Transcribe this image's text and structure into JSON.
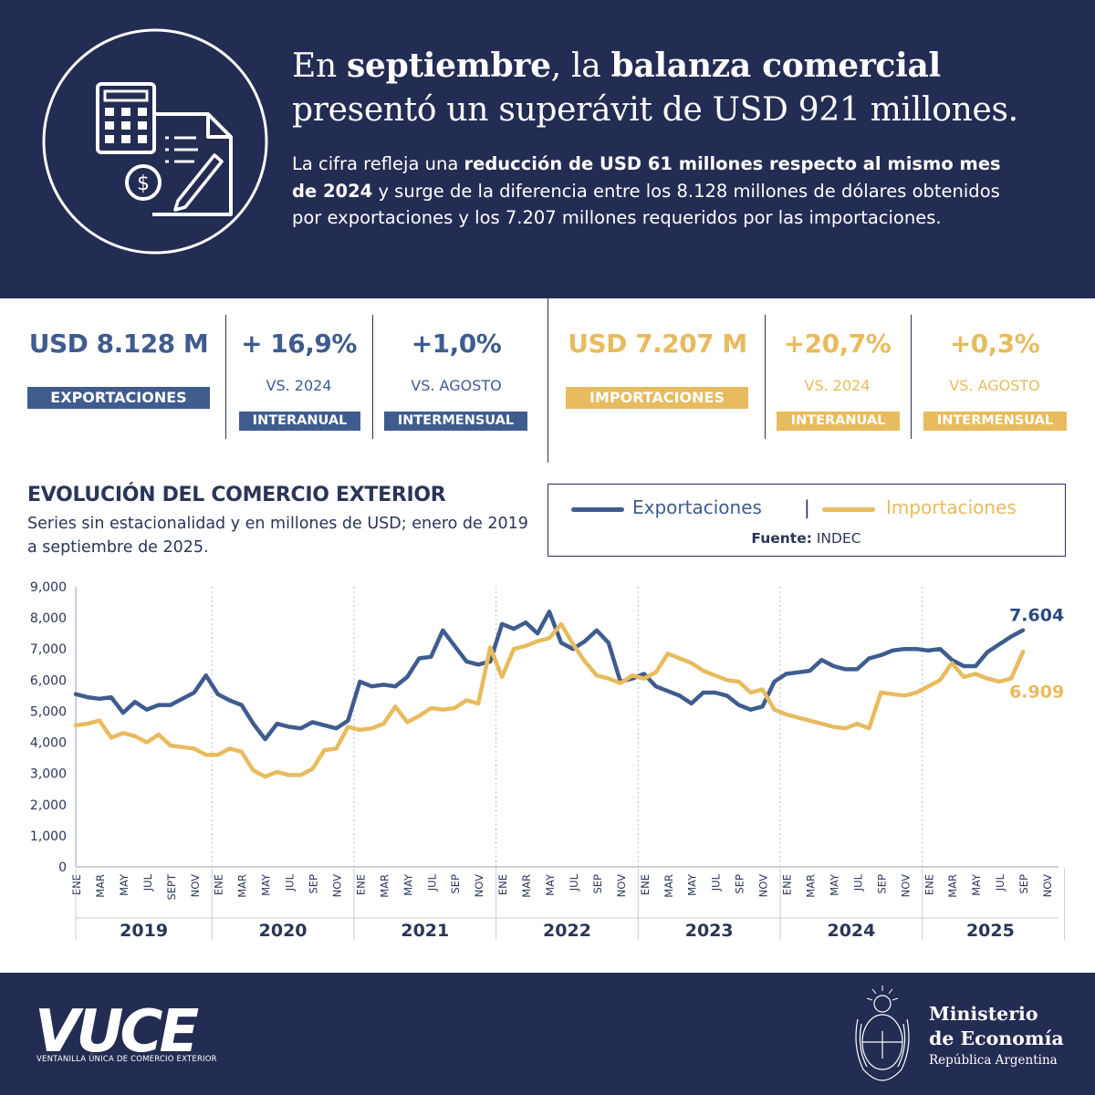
{
  "header": {
    "headline_1": "En ",
    "headline_2": "septiembre",
    "headline_3": ", la ",
    "headline_4": "balanza comercial",
    "headline_5": "presentó un superávit de USD 921 millones.",
    "sub_1": "La cifra refleja una ",
    "sub_2": "reducción de USD 61 millones respecto al mismo mes de 2024",
    "sub_3": " y surge de la diferencia entre los 8.128 millones de dólares obtenidos por exportaciones y los 7.207 millones requeridos por las importaciones."
  },
  "stats": {
    "exports": {
      "value": "USD 8.128 M",
      "label": "EXPORTACIONES",
      "yoy_value": "+ 16,9%",
      "yoy_vs": "VS. 2024",
      "yoy_tag": "INTERANUAL",
      "mom_value": "+1,0%",
      "mom_vs": "VS. AGOSTO",
      "mom_tag": "INTERMENSUAL"
    },
    "imports": {
      "value": "USD 7.207 M",
      "label": "IMPORTACIONES",
      "yoy_value": "+20,7%",
      "yoy_vs": "VS. 2024",
      "yoy_tag": "INTERANUAL",
      "mom_value": "+0,3%",
      "mom_vs": "VS. AGOSTO",
      "mom_tag": "INTERMENSUAL"
    }
  },
  "legend": {
    "exports": "Exportaciones",
    "sep": "|",
    "imports": "Importaciones",
    "source_label": "Fuente:",
    "source": " INDEC"
  },
  "colors": {
    "navy": "#232c52",
    "exports": "#3f5c8f",
    "imports": "#e8bb5e"
  },
  "chart_data": {
    "type": "line",
    "title": "EVOLUCIÓN DEL COMERCIO EXTERIOR",
    "subtitle": "Series sin estacionalidad y en millones de USD; enero de 2019 a septiembre de 2025.",
    "ylim": [
      0,
      9000
    ],
    "y_ticks": [
      "0",
      "1,000",
      "2,000",
      "3,000",
      "4,000",
      "5,000",
      "6,000",
      "7,000",
      "8,000",
      "9,000"
    ],
    "month_ticks": [
      "ENE",
      "MAR",
      "MAY",
      "JUL",
      "SEPT",
      "NOV",
      "ENE",
      "MAR",
      "MAY",
      "JUL",
      "SEP",
      "NOV",
      "ENE",
      "MAR",
      "MAY",
      "JUL",
      "SEP",
      "NOV",
      "ENE",
      "MAR",
      "MAY",
      "JUL",
      "SEP",
      "NOV",
      "ENE",
      "MAR",
      "MAY",
      "JUL",
      "SEP",
      "NOV",
      "ENE",
      "MAR",
      "MAY",
      "JUL",
      "SEP",
      "NOV",
      "ENE",
      "MAR",
      "MAY",
      "JUL",
      "SEP",
      "NOV"
    ],
    "years": [
      "2019",
      "2020",
      "2021",
      "2022",
      "2023",
      "2024",
      "2025"
    ],
    "grid": "dotted vertical year separators",
    "series": [
      {
        "name": "Exportaciones",
        "color": "#3f5c8f",
        "end_label": "7.604",
        "values": [
          5550,
          5450,
          5400,
          5450,
          4950,
          5300,
          5050,
          5200,
          5200,
          5400,
          5600,
          6150,
          5550,
          5350,
          5200,
          4600,
          4100,
          4600,
          4500,
          4450,
          4650,
          4550,
          4450,
          4700,
          5950,
          5800,
          5850,
          5800,
          6100,
          6700,
          6750,
          7600,
          7100,
          6600,
          6500,
          6600,
          7800,
          7650,
          7850,
          7500,
          8200,
          7200,
          7000,
          7250,
          7600,
          7200,
          5950,
          6050,
          6200,
          5800,
          5650,
          5500,
          5250,
          5600,
          5600,
          5500,
          5200,
          5050,
          5150,
          5950,
          6200,
          6250,
          6300,
          6650,
          6450,
          6350,
          6350,
          6700,
          6800,
          6950,
          7000,
          7000,
          6950,
          7000,
          6650,
          6450,
          6450,
          6900,
          7150,
          7400,
          7604
        ]
      },
      {
        "name": "Importaciones",
        "color": "#e8bb5e",
        "end_label": "6.909",
        "values": [
          4550,
          4600,
          4700,
          4150,
          4300,
          4200,
          4000,
          4250,
          3900,
          3850,
          3800,
          3600,
          3600,
          3800,
          3700,
          3100,
          2900,
          3050,
          2950,
          2950,
          3150,
          3750,
          3800,
          4500,
          4400,
          4450,
          4600,
          5150,
          4650,
          4850,
          5100,
          5050,
          5100,
          5350,
          5250,
          7050,
          6100,
          7000,
          7100,
          7250,
          7350,
          7800,
          7150,
          6600,
          6150,
          6050,
          5900,
          6150,
          6050,
          6250,
          6850,
          6700,
          6550,
          6300,
          6150,
          6000,
          5950,
          5600,
          5700,
          5050,
          4900,
          4800,
          4700,
          4600,
          4500,
          4450,
          4600,
          4450,
          5600,
          5550,
          5500,
          5600,
          5800,
          6000,
          6550,
          6100,
          6200,
          6050,
          5950,
          6050,
          6909
        ]
      }
    ]
  },
  "footer": {
    "vuce_sub": "VENTANILLA ÚNICA DE COMERCIO EXTERIOR",
    "ministry_1": "Ministerio",
    "ministry_2": "de Economía",
    "ministry_3": "República Argentina"
  }
}
